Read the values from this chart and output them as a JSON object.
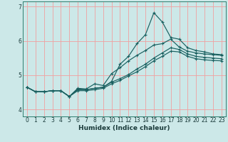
{
  "xlabel": "Humidex (Indice chaleur)",
  "bg_color": "#cce8e8",
  "grid_color_major": "#f0a0a0",
  "grid_color_minor": "#d4e8e8",
  "line_color": "#1a6060",
  "xlim": [
    -0.5,
    23.5
  ],
  "ylim": [
    3.8,
    7.15
  ],
  "yticks": [
    4,
    5,
    6,
    7
  ],
  "xticks": [
    0,
    1,
    2,
    3,
    4,
    5,
    6,
    7,
    8,
    9,
    10,
    11,
    12,
    13,
    14,
    15,
    16,
    17,
    18,
    19,
    20,
    21,
    22,
    23
  ],
  "series": [
    [
      4.65,
      4.52,
      4.52,
      4.55,
      4.55,
      4.38,
      4.6,
      4.58,
      4.62,
      4.65,
      4.82,
      5.32,
      5.55,
      5.92,
      6.18,
      6.82,
      6.55,
      6.1,
      6.05,
      5.8,
      5.72,
      5.68,
      5.62,
      5.6
    ],
    [
      4.65,
      4.52,
      4.52,
      4.55,
      4.55,
      4.38,
      4.62,
      4.6,
      4.75,
      4.7,
      5.05,
      5.22,
      5.42,
      5.58,
      5.72,
      5.88,
      5.92,
      6.05,
      5.82,
      5.7,
      5.65,
      5.62,
      5.6,
      5.58
    ],
    [
      4.65,
      4.52,
      4.52,
      4.55,
      4.55,
      4.38,
      4.58,
      4.58,
      4.62,
      4.65,
      4.8,
      4.9,
      5.02,
      5.18,
      5.32,
      5.5,
      5.65,
      5.8,
      5.75,
      5.62,
      5.55,
      5.52,
      5.5,
      5.48
    ],
    [
      4.65,
      4.52,
      4.52,
      4.55,
      4.55,
      4.38,
      4.55,
      4.55,
      4.58,
      4.62,
      4.75,
      4.85,
      4.98,
      5.1,
      5.25,
      5.42,
      5.55,
      5.7,
      5.68,
      5.55,
      5.48,
      5.45,
      5.43,
      5.42
    ]
  ]
}
